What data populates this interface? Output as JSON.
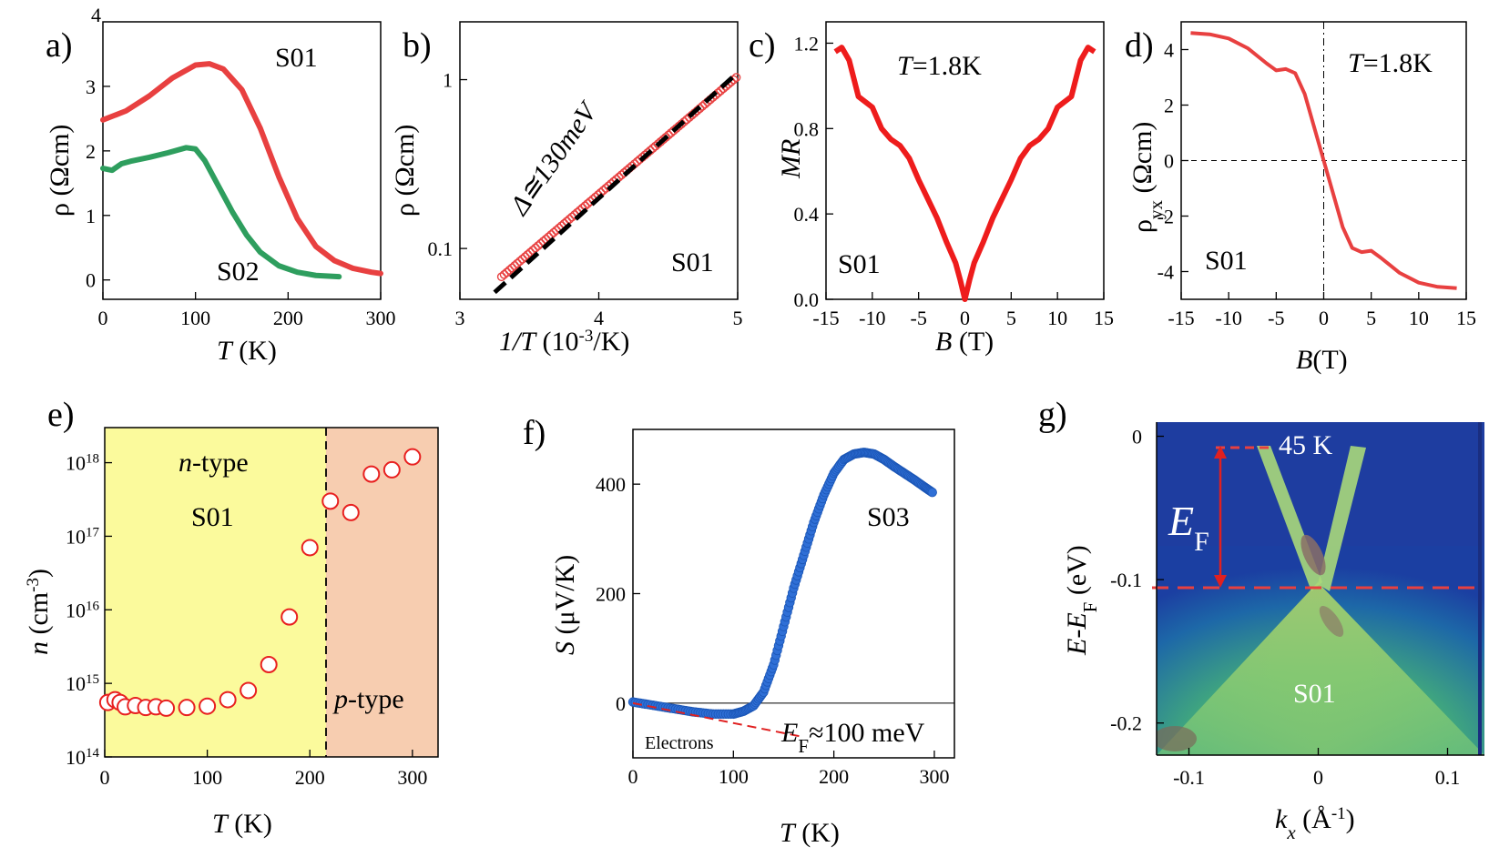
{
  "panels": {
    "a": {
      "letter": "a)",
      "xlabel_var": "T",
      "xlabel_unit": " (K)",
      "ylabel": "ρ (Ωcm)",
      "s01": "S01",
      "s02": "S02"
    },
    "b": {
      "letter": "b)",
      "xlabel_var": "1/T",
      "xlabel_unit": "  (10",
      "xlabel_sup": "-3",
      "xlabel_end": "/K)",
      "ylabel": "ρ (Ωcm)",
      "fit": "Δ≅130meV",
      "sample": "S01"
    },
    "c": {
      "letter": "c)",
      "xlabel_var": "B",
      "xlabel_unit": " (T)",
      "ylabel": "MR",
      "temp": "T=1.8K",
      "sample": "S01"
    },
    "d": {
      "letter": "d)",
      "xlabel_var": "B",
      "xlabel_unit": "(T)",
      "ylabel_main": "ρ",
      "ylabel_sub": "yx",
      "ylabel_unit": " (Ωcm)",
      "temp": "T=1.8K",
      "sample": "S01"
    },
    "e": {
      "letter": "e)",
      "xlabel_var": "T",
      "xlabel_unit": " (K)",
      "ylabel_var": "n",
      "ylabel_unit": " (cm",
      "ylabel_sup": "-3",
      "ylabel_end": ")",
      "ntype": "n-type",
      "ptype": "p-type",
      "sample": "S01"
    },
    "f": {
      "letter": "f)",
      "xlabel_var": "T",
      "xlabel_unit": " (K)",
      "ylabel_var": "S",
      "ylabel_unit": " (μV/K)",
      "sample": "S03",
      "electrons": "Electrons",
      "ef_main": "E",
      "ef_sub": "F",
      "ef_rest": "≈100 meV"
    },
    "g": {
      "letter": "g)",
      "xlabel_var": "k",
      "xlabel_sub": "x",
      "xlabel_unit": " (Å",
      "xlabel_sup": "-1",
      "xlabel_end": ")",
      "ylabel": "E-E",
      "ylabel_sub": "F",
      "ylabel_unit": " (eV)",
      "temp": "45 K",
      "ef_main": "E",
      "ef_sub": "F",
      "sample": "S01"
    }
  },
  "colors": {
    "red": "#e84040",
    "green": "#2e9e5e",
    "blue": "#2f6fd6",
    "yellow": "#fbfa9c",
    "salmon": "#f7cdb0"
  },
  "chart_data": [
    {
      "panel": "a",
      "type": "line",
      "xlim": [
        0,
        300
      ],
      "ylim": [
        -0.3,
        4
      ],
      "xticks": [
        0,
        100,
        200,
        300
      ],
      "yticks": [
        0,
        1,
        2,
        3,
        4
      ],
      "series": [
        {
          "name": "S01",
          "color": "#e84040",
          "x": [
            0,
            25,
            50,
            75,
            100,
            115,
            130,
            150,
            170,
            190,
            210,
            230,
            250,
            270,
            290,
            300
          ],
          "y": [
            2.48,
            2.62,
            2.85,
            3.13,
            3.33,
            3.35,
            3.27,
            2.95,
            2.35,
            1.6,
            0.95,
            0.52,
            0.3,
            0.18,
            0.12,
            0.1
          ]
        },
        {
          "name": "S02",
          "color": "#2e9e5e",
          "x": [
            0,
            10,
            20,
            30,
            50,
            70,
            90,
            100,
            110,
            125,
            140,
            155,
            170,
            190,
            210,
            230,
            255
          ],
          "y": [
            1.73,
            1.7,
            1.8,
            1.84,
            1.9,
            1.97,
            2.05,
            2.03,
            1.85,
            1.45,
            1.05,
            0.7,
            0.43,
            0.22,
            0.12,
            0.07,
            0.05
          ]
        }
      ]
    },
    {
      "panel": "b",
      "type": "scatter",
      "xlim": [
        3,
        5
      ],
      "ylim_log": [
        0.05,
        2.2
      ],
      "xticks": [
        3,
        4,
        5
      ],
      "yticks": [
        0.1,
        1
      ],
      "series": [
        {
          "name": "data",
          "color": "#e84040",
          "x": [
            3.3,
            4.99
          ],
          "y": [
            0.068,
            1.03
          ]
        },
        {
          "name": "fit",
          "color": "#000000",
          "x": [
            3.25,
            5.0
          ],
          "y": [
            0.055,
            1.1
          ]
        }
      ]
    },
    {
      "panel": "c",
      "type": "line",
      "xlim": [
        -15,
        15
      ],
      "ylim": [
        0,
        1.3
      ],
      "xticks": [
        -15,
        -10,
        -5,
        0,
        5,
        10,
        15
      ],
      "yticks": [
        0,
        0.4,
        0.8,
        1.2
      ],
      "series": [
        {
          "name": "MR",
          "color": "#ee1c1c",
          "x": [
            -14,
            -13.3,
            -12.5,
            -11.5,
            -10,
            -9,
            -8,
            -7,
            -6,
            -5,
            -4,
            -3,
            -2,
            -1,
            -0.5,
            0,
            0.5,
            1,
            2,
            3,
            4,
            5,
            6,
            7,
            8,
            9,
            10,
            11.5,
            12.5,
            13.3,
            14
          ],
          "y": [
            1.16,
            1.18,
            1.12,
            0.95,
            0.9,
            0.8,
            0.75,
            0.72,
            0.66,
            0.56,
            0.47,
            0.38,
            0.27,
            0.17,
            0.09,
            0.0,
            0.09,
            0.17,
            0.27,
            0.38,
            0.47,
            0.56,
            0.66,
            0.72,
            0.75,
            0.8,
            0.9,
            0.95,
            1.12,
            1.18,
            1.16
          ]
        }
      ]
    },
    {
      "panel": "d",
      "type": "line",
      "xlim": [
        -15,
        15
      ],
      "ylim": [
        -5,
        5
      ],
      "xticks": [
        -15,
        -10,
        -5,
        0,
        5,
        10,
        15
      ],
      "yticks": [
        -4,
        -2,
        0,
        2,
        4
      ],
      "series": [
        {
          "name": "ρyx",
          "color": "#e84040",
          "x": [
            -14,
            -12,
            -10,
            -8,
            -6,
            -5,
            -4,
            -3,
            -2,
            -1,
            0,
            1,
            2,
            3,
            4,
            5,
            6,
            8,
            10,
            12,
            14
          ],
          "y": [
            4.6,
            4.55,
            4.4,
            4.05,
            3.5,
            3.25,
            3.3,
            3.15,
            2.4,
            1.2,
            0,
            -1.2,
            -2.4,
            -3.15,
            -3.3,
            -3.25,
            -3.5,
            -4.05,
            -4.4,
            -4.55,
            -4.6
          ]
        }
      ]
    },
    {
      "panel": "e",
      "type": "scatter",
      "xlim": [
        0,
        325
      ],
      "ylim_log": [
        100000000000000.0,
        3e+18
      ],
      "boundary_T": 210,
      "xticks": [
        0,
        100,
        200,
        300
      ],
      "series": [
        {
          "name": "S01",
          "color": "#e82020",
          "x": [
            3,
            10,
            15,
            20,
            30,
            40,
            50,
            60,
            80,
            100,
            120,
            140,
            160,
            180,
            200,
            220,
            240,
            260,
            280,
            300
          ],
          "y": [
            550000000000000.0,
            600000000000000.0,
            550000000000000.0,
            480000000000000.0,
            500000000000000.0,
            470000000000000.0,
            480000000000000.0,
            460000000000000.0,
            470000000000000.0,
            490000000000000.0,
            600000000000000.0,
            800000000000000.0,
            1800000000000000.0,
            8000000000000000.0,
            7e+16,
            3e+17,
            2.1e+17,
            7e+17,
            8e+17,
            1.2e+18
          ]
        }
      ]
    },
    {
      "panel": "f",
      "type": "scatter",
      "xlim": [
        0,
        320
      ],
      "ylim": [
        -100,
        500
      ],
      "xticks": [
        0,
        100,
        200,
        300
      ],
      "yticks": [
        0,
        200,
        400
      ],
      "series": [
        {
          "name": "S03",
          "color": "#2f6fd6",
          "x": [
            0,
            20,
            40,
            60,
            80,
            100,
            110,
            120,
            130,
            140,
            150,
            160,
            170,
            180,
            190,
            200,
            210,
            220,
            230,
            240,
            250,
            260,
            270,
            280,
            290,
            298
          ],
          "y": [
            2,
            -4,
            -10,
            -16,
            -20,
            -20,
            -15,
            -5,
            20,
            70,
            140,
            210,
            270,
            330,
            380,
            420,
            445,
            455,
            458,
            455,
            445,
            432,
            420,
            408,
            395,
            385
          ]
        },
        {
          "name": "fit",
          "color": "#e02020",
          "x": [
            0,
            170
          ],
          "y": [
            0,
            -62
          ]
        }
      ]
    },
    {
      "panel": "g",
      "type": "heatmap",
      "xlim": [
        -0.125,
        0.125
      ],
      "ylim": [
        -0.23,
        0.02
      ],
      "xticks": [
        -0.1,
        0,
        0.1
      ],
      "yticks": [
        0,
        -0.1,
        -0.2
      ],
      "dirac_point_eV": -0.107
    }
  ]
}
